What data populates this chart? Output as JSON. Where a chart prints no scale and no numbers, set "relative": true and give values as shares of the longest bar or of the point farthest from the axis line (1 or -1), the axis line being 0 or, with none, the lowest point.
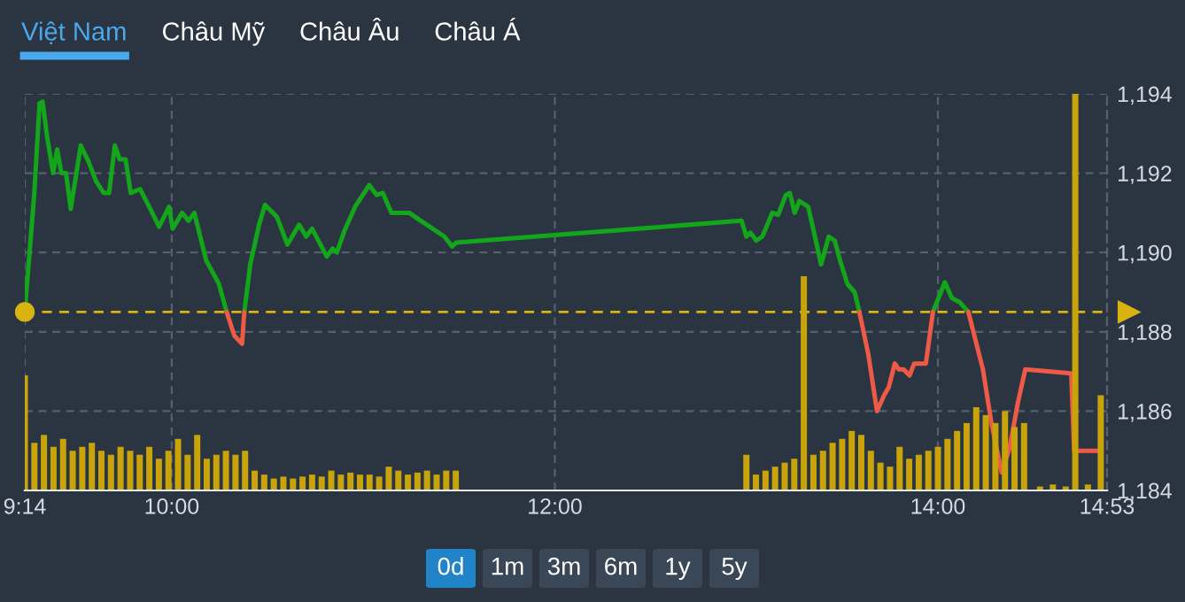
{
  "chart_data": [
    {
      "type": "line",
      "xlim": [
        9.233,
        14.883
      ],
      "ylim": [
        1184,
        1194
      ],
      "xticks": [
        {
          "value": 9.233,
          "label": "9:14"
        },
        {
          "value": 10,
          "label": "10:00"
        },
        {
          "value": 12,
          "label": "12:00"
        },
        {
          "value": 14,
          "label": "14:00"
        },
        {
          "value": 14.883,
          "label": "14:53"
        }
      ],
      "yticks": [
        {
          "value": 1184,
          "label": "1,184"
        },
        {
          "value": 1186,
          "label": "1,186"
        },
        {
          "value": 1188,
          "label": "1,188"
        },
        {
          "value": 1190,
          "label": "1,190"
        },
        {
          "value": 1192,
          "label": "1,192"
        },
        {
          "value": 1194,
          "label": "1,194"
        }
      ],
      "grid": true,
      "marker": "none",
      "line_style": "solid",
      "ref_lines": [
        {
          "axis": "y",
          "value": 1188.5,
          "color": "#d9b310",
          "line_style": "dashed"
        }
      ],
      "series": [
        {
          "color": "#13a61a",
          "x": [
            9.233,
            9.282,
            9.31,
            9.326,
            9.35,
            9.381,
            9.402,
            9.424,
            9.448,
            9.473,
            9.525,
            9.565,
            9.605,
            9.645,
            9.673,
            9.703,
            9.728,
            9.759,
            9.786,
            9.835,
            9.888,
            9.934,
            9.986,
            10.005,
            10.054,
            10.088,
            10.118,
            10.18,
            10.247,
            10.287,
            10.333,
            10.379,
            10.41,
            10.456,
            10.487,
            10.549,
            10.604,
            10.665,
            10.702,
            10.733,
            10.809,
            10.84,
            10.862,
            10.902,
            10.957,
            11.031,
            11.07,
            11.102,
            11.147,
            11.24,
            11.3,
            11.347,
            11.424,
            11.464,
            11.485,
            12.975,
            13.0,
            13.021,
            13.052,
            13.083,
            13.114,
            13.135,
            13.166,
            13.206,
            13.227,
            13.252,
            13.277,
            13.323,
            13.351,
            13.39,
            13.43,
            13.461,
            13.489,
            13.528,
            13.565,
            13.59,
            13.8,
            13.974,
            14.036,
            14.073,
            14.113,
            14.159
          ],
          "values": [
            1188.5,
            1191.45,
            1193.76,
            1193.8,
            1192.9,
            1192.0,
            1192.6,
            1192.0,
            1192.0,
            1191.1,
            1192.7,
            1192.3,
            1191.8,
            1191.5,
            1191.5,
            1192.7,
            1192.35,
            1192.35,
            1191.5,
            1191.6,
            1191.1,
            1190.65,
            1191.15,
            1190.6,
            1191.0,
            1190.8,
            1191.0,
            1189.8,
            1189.2,
            1188.5,
            null,
            1188.5,
            1189.7,
            1190.7,
            1191.2,
            1190.9,
            1190.2,
            1190.7,
            1190.4,
            1190.6,
            1189.9,
            1190.1,
            1190.0,
            1190.55,
            1191.15,
            1191.7,
            1191.45,
            1191.5,
            1191.0,
            1191.0,
            1190.8,
            1190.65,
            1190.4,
            1190.15,
            1190.25,
            1190.8,
            1190.4,
            1190.5,
            1190.3,
            1190.4,
            1190.75,
            1191.0,
            1190.95,
            1191.45,
            1191.5,
            1191.0,
            1191.3,
            1191.15,
            1190.55,
            1189.7,
            1190.4,
            1190.3,
            1189.8,
            1189.2,
            1189.0,
            1188.5,
            null,
            1188.5,
            1189.25,
            1188.85,
            1188.75,
            1188.5
          ]
        },
        {
          "color": "#ef5a47",
          "x": [
            10.287,
            10.327,
            10.367,
            10.379,
            11.0,
            13.59,
            13.636,
            13.682,
            13.719,
            13.743,
            13.775,
            13.796,
            13.821,
            13.852,
            13.876,
            13.937,
            13.974,
            14.05,
            14.159,
            14.235,
            14.281,
            14.333,
            14.373,
            14.419,
            14.456,
            14.696,
            14.711,
            14.852
          ],
          "values": [
            1188.5,
            1187.9,
            1187.7,
            1188.5,
            null,
            1188.5,
            1187.45,
            1186.0,
            1186.4,
            1186.6,
            1187.2,
            1187.05,
            1187.05,
            1186.9,
            1187.2,
            1187.2,
            1188.5,
            null,
            1188.5,
            1187.05,
            1185.65,
            1184.45,
            1185.05,
            1186.25,
            1187.05,
            1186.95,
            1185.0,
            1185.0
          ]
        }
      ]
    },
    {
      "type": "bar",
      "relative": true,
      "xlim": [
        9.233,
        14.883
      ],
      "color": "#c9a30a",
      "x": [
        9.233,
        9.283,
        9.333,
        9.383,
        9.433,
        9.483,
        9.533,
        9.583,
        9.633,
        9.683,
        9.733,
        9.783,
        9.833,
        9.883,
        9.933,
        9.983,
        10.033,
        10.083,
        10.133,
        10.183,
        10.233,
        10.283,
        10.333,
        10.383,
        10.433,
        10.483,
        10.533,
        10.583,
        10.633,
        10.683,
        10.733,
        10.783,
        10.833,
        10.883,
        10.933,
        10.983,
        11.033,
        11.083,
        11.133,
        11.183,
        11.233,
        11.283,
        11.333,
        11.383,
        11.433,
        11.483,
        13.0,
        13.05,
        13.1,
        13.15,
        13.2,
        13.25,
        13.3,
        13.35,
        13.4,
        13.45,
        13.5,
        13.55,
        13.6,
        13.65,
        13.7,
        13.75,
        13.8,
        13.85,
        13.9,
        13.95,
        14.0,
        14.05,
        14.1,
        14.15,
        14.2,
        14.25,
        14.3,
        14.35,
        14.4,
        14.45,
        14.533,
        14.6,
        14.667,
        14.717,
        14.783,
        14.85
      ],
      "values": [
        0.29,
        0.12,
        0.14,
        0.11,
        0.13,
        0.1,
        0.11,
        0.12,
        0.1,
        0.09,
        0.11,
        0.1,
        0.09,
        0.11,
        0.08,
        0.1,
        0.13,
        0.09,
        0.14,
        0.08,
        0.09,
        0.1,
        0.09,
        0.1,
        0.05,
        0.04,
        0.03,
        0.035,
        0.03,
        0.035,
        0.04,
        0.035,
        0.05,
        0.04,
        0.045,
        0.04,
        0.04,
        0.035,
        0.06,
        0.05,
        0.04,
        0.045,
        0.05,
        0.04,
        0.05,
        0.05,
        0.09,
        0.04,
        0.05,
        0.06,
        0.07,
        0.08,
        0.54,
        0.09,
        0.1,
        0.12,
        0.13,
        0.15,
        0.14,
        0.1,
        0.07,
        0.06,
        0.11,
        0.08,
        0.09,
        0.1,
        0.11,
        0.13,
        0.15,
        0.17,
        0.21,
        0.19,
        0.17,
        0.2,
        0.16,
        0.17,
        0.01,
        0.015,
        0.01,
        1.0,
        0.015,
        0.24
      ]
    },
    {
      "type": "other",
      "annotations": [
        "Việt Nam",
        "Châu Mỹ",
        "Châu Âu",
        "Châu Á"
      ]
    },
    {
      "type": "other",
      "annotations": [
        "0d",
        "1m",
        "3m",
        "6m",
        "1y",
        "5y"
      ]
    }
  ]
}
